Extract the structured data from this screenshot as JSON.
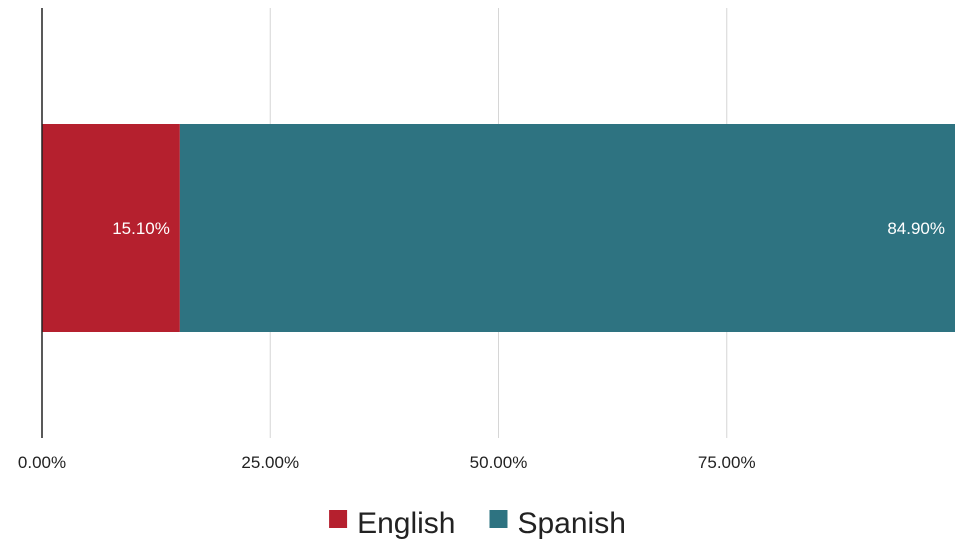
{
  "chart_data": {
    "type": "bar",
    "orientation": "horizontal",
    "stacked": true,
    "categories": [
      ""
    ],
    "series": [
      {
        "name": "English",
        "values": [
          15.1
        ],
        "label": "15.10%",
        "color": "#b5202e"
      },
      {
        "name": "Spanish",
        "values": [
          84.9
        ],
        "label": "84.90%",
        "color": "#2e7381"
      }
    ],
    "xlim": [
      0,
      100
    ],
    "x_ticks": [
      {
        "value": 0,
        "label": "0.00%"
      },
      {
        "value": 25,
        "label": "25.00%"
      },
      {
        "value": 50,
        "label": "50.00%"
      },
      {
        "value": 75,
        "label": "75.00%"
      }
    ],
    "grid": true,
    "legend_position": "bottom",
    "title": "",
    "xlabel": "",
    "ylabel": ""
  }
}
